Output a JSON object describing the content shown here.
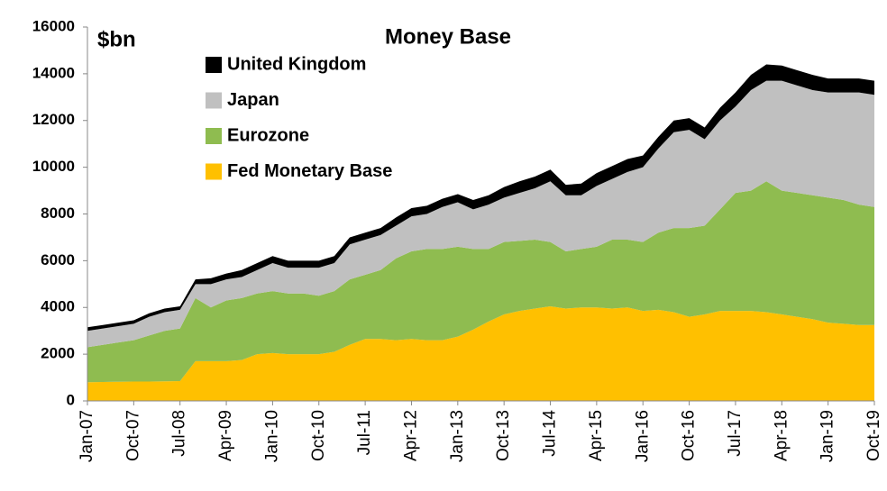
{
  "chart_data": {
    "type": "stacked_area",
    "title": "Money Base",
    "ylabel": "$bn",
    "legend": "upper left",
    "categories": [
      "Jan-07",
      null,
      null,
      "Oct-07",
      null,
      null,
      "Jul-08",
      null,
      null,
      "Apr-09",
      null,
      null,
      "Jan-10",
      null,
      null,
      "Oct-10",
      null,
      null,
      "Jul-11",
      null,
      null,
      "Apr-12",
      null,
      null,
      "Jan-13",
      null,
      null,
      "Oct-13",
      null,
      null,
      "Jul-14",
      null,
      null,
      "Apr-15",
      null,
      null,
      "Jan-16",
      null,
      null,
      "Oct-16",
      null,
      null,
      "Jul-17",
      null,
      null,
      "Apr-18",
      null,
      null,
      "Jan-19",
      null,
      null,
      "Oct-19"
    ],
    "ylim": [
      0,
      16000
    ],
    "yticks": [
      0,
      2000,
      4000,
      6000,
      8000,
      10000,
      12000,
      14000,
      16000
    ],
    "series": [
      {
        "name": "Fed Monetary Base",
        "color": "#ffc000",
        "values": [
          800,
          810,
          820,
          830,
          830,
          840,
          850,
          1700,
          1700,
          1700,
          1750,
          2000,
          2050,
          2000,
          2000,
          2000,
          2100,
          2400,
          2650,
          2650,
          2600,
          2650,
          2600,
          2600,
          2750,
          3050,
          3400,
          3700,
          3850,
          3950,
          4050,
          3950,
          4000,
          4000,
          3950,
          4000,
          3850,
          3900,
          3800,
          3600,
          3700,
          3850,
          3850,
          3850,
          3800,
          3700,
          3600,
          3500,
          3350,
          3300,
          3250,
          3250
        ]
      },
      {
        "name": "Eurozone",
        "color": "#8fbc50",
        "values": [
          1500,
          1590,
          1680,
          1770,
          1970,
          2160,
          2250,
          2700,
          2300,
          2600,
          2650,
          2600,
          2650,
          2600,
          2600,
          2500,
          2600,
          2800,
          2750,
          2950,
          3500,
          3750,
          3900,
          3900,
          3850,
          3450,
          3100,
          3100,
          3000,
          2950,
          2750,
          2450,
          2500,
          2600,
          2950,
          2900,
          2950,
          3300,
          3600,
          3800,
          3800,
          4350,
          5050,
          5150,
          5600,
          5300,
          5300,
          5300,
          5350,
          5300,
          5150,
          5050
        ]
      },
      {
        "name": "Japan",
        "color": "#c0c0c0",
        "values": [
          700,
          700,
          700,
          700,
          800,
          800,
          800,
          600,
          1000,
          900,
          900,
          1000,
          1200,
          1100,
          1100,
          1200,
          1200,
          1500,
          1500,
          1500,
          1400,
          1500,
          1500,
          1800,
          1900,
          1700,
          1900,
          1900,
          2050,
          2200,
          2600,
          2400,
          2300,
          2600,
          2600,
          2900,
          3200,
          3600,
          4100,
          4200,
          3700,
          3800,
          3700,
          4300,
          4300,
          4700,
          4600,
          4500,
          4500,
          4600,
          4800,
          4800
        ]
      },
      {
        "name": "United Kingdom",
        "color": "#000000",
        "values": [
          150,
          150,
          150,
          150,
          150,
          150,
          150,
          200,
          250,
          250,
          300,
          300,
          300,
          300,
          300,
          300,
          300,
          300,
          300,
          300,
          350,
          350,
          350,
          350,
          350,
          400,
          400,
          450,
          500,
          500,
          500,
          450,
          500,
          550,
          550,
          550,
          500,
          500,
          500,
          500,
          500,
          550,
          600,
          650,
          700,
          650,
          650,
          650,
          600,
          600,
          600,
          600
        ]
      }
    ]
  }
}
